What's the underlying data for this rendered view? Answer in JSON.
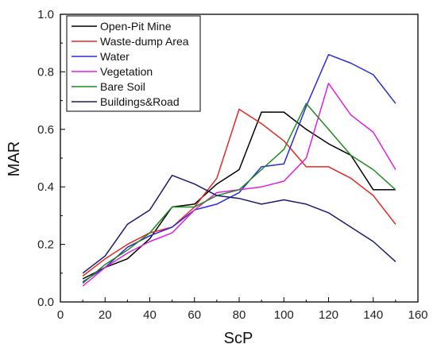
{
  "chart_data": {
    "type": "line",
    "title": "",
    "xlabel": "ScP",
    "ylabel": "MAR",
    "xlim": [
      0,
      160
    ],
    "ylim": [
      0.0,
      1.0
    ],
    "xticks": [
      0,
      20,
      40,
      60,
      80,
      100,
      120,
      140,
      160
    ],
    "yticks": [
      0.0,
      0.2,
      0.4,
      0.6,
      0.8,
      1.0
    ],
    "xtick_labels": [
      "0",
      "20",
      "40",
      "60",
      "80",
      "100",
      "120",
      "140",
      "160"
    ],
    "ytick_labels": [
      "0.0",
      "0.2",
      "0.4",
      "0.6",
      "0.8",
      "1.0"
    ],
    "grid": false,
    "legend_position": "top-left",
    "x": [
      10,
      20,
      30,
      40,
      50,
      60,
      70,
      80,
      90,
      100,
      110,
      120,
      130,
      140,
      150
    ],
    "series": [
      {
        "name": "Open-Pit Mine",
        "color": "#000000",
        "values": [
          0.08,
          0.12,
          0.15,
          0.22,
          0.33,
          0.34,
          0.41,
          0.46,
          0.66,
          0.66,
          0.6,
          0.55,
          0.51,
          0.39,
          0.39
        ]
      },
      {
        "name": "Waste-dump Area",
        "color": "#e32a21",
        "values": [
          0.09,
          0.15,
          0.2,
          0.24,
          0.26,
          0.33,
          0.43,
          0.67,
          0.62,
          0.56,
          0.47,
          0.47,
          0.43,
          0.37,
          0.27
        ]
      },
      {
        "name": "Water",
        "color": "#2b2bd9",
        "values": [
          0.07,
          0.12,
          0.19,
          0.23,
          0.26,
          0.32,
          0.34,
          0.38,
          0.47,
          0.48,
          0.68,
          0.86,
          0.83,
          0.79,
          0.69
        ]
      },
      {
        "name": "Vegetation",
        "color": "#e020e0",
        "values": [
          0.055,
          0.12,
          0.17,
          0.21,
          0.24,
          0.32,
          0.38,
          0.39,
          0.4,
          0.42,
          0.5,
          0.76,
          0.65,
          0.59,
          0.46
        ]
      },
      {
        "name": "Bare Soil",
        "color": "#1f8a1f",
        "values": [
          0.065,
          0.13,
          0.18,
          0.24,
          0.33,
          0.33,
          0.37,
          0.39,
          0.46,
          0.53,
          0.69,
          0.6,
          0.51,
          0.46,
          0.39
        ]
      },
      {
        "name": "Buildings&Road",
        "color": "#1b1b6e",
        "values": [
          0.1,
          0.16,
          0.27,
          0.32,
          0.44,
          0.41,
          0.37,
          0.36,
          0.34,
          0.355,
          0.34,
          0.31,
          0.26,
          0.21,
          0.14
        ]
      }
    ]
  }
}
